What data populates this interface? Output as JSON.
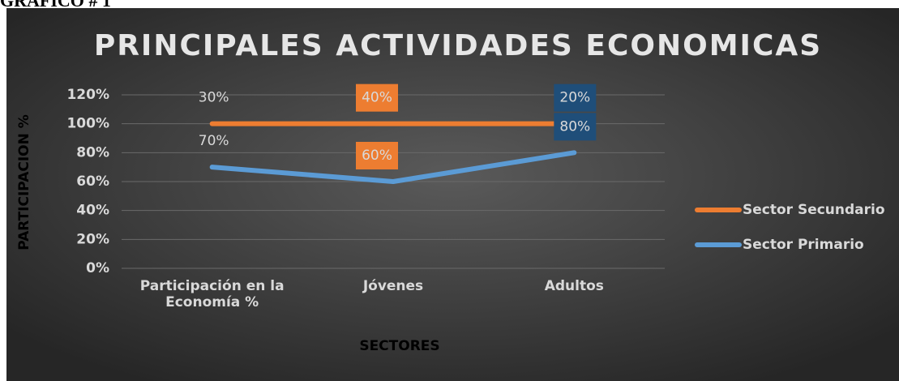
{
  "heading": "GRAFICO # 1",
  "chart_data": {
    "type": "line",
    "stacked": true,
    "title": "PRINCIPALES ACTIVIDADES ECONOMICAS",
    "x_label": "SECTORES",
    "y_label": "PARTICIPACION %",
    "categories": [
      "Participación en la Economía %",
      "Jóvenes",
      "Adultos"
    ],
    "series": [
      {
        "name": "Sector Primario",
        "color": "#5b9bd5",
        "values": [
          70,
          60,
          80
        ],
        "value_labels": [
          "70%",
          "60%",
          "80%"
        ]
      },
      {
        "name": "Sector Secundario",
        "color": "#ed7d31",
        "values": [
          30,
          40,
          20
        ],
        "value_labels": [
          "30%",
          "40%",
          "20%"
        ]
      }
    ],
    "ylim": [
      0,
      120
    ],
    "yticks": [
      {
        "value": 0,
        "label": "0%"
      },
      {
        "value": 20,
        "label": "20%"
      },
      {
        "value": 40,
        "label": "40%"
      },
      {
        "value": 60,
        "label": "60%"
      },
      {
        "value": 80,
        "label": "80%"
      },
      {
        "value": 100,
        "label": "100%"
      },
      {
        "value": 120,
        "label": "120%"
      }
    ],
    "grid": true,
    "legend": "right"
  }
}
